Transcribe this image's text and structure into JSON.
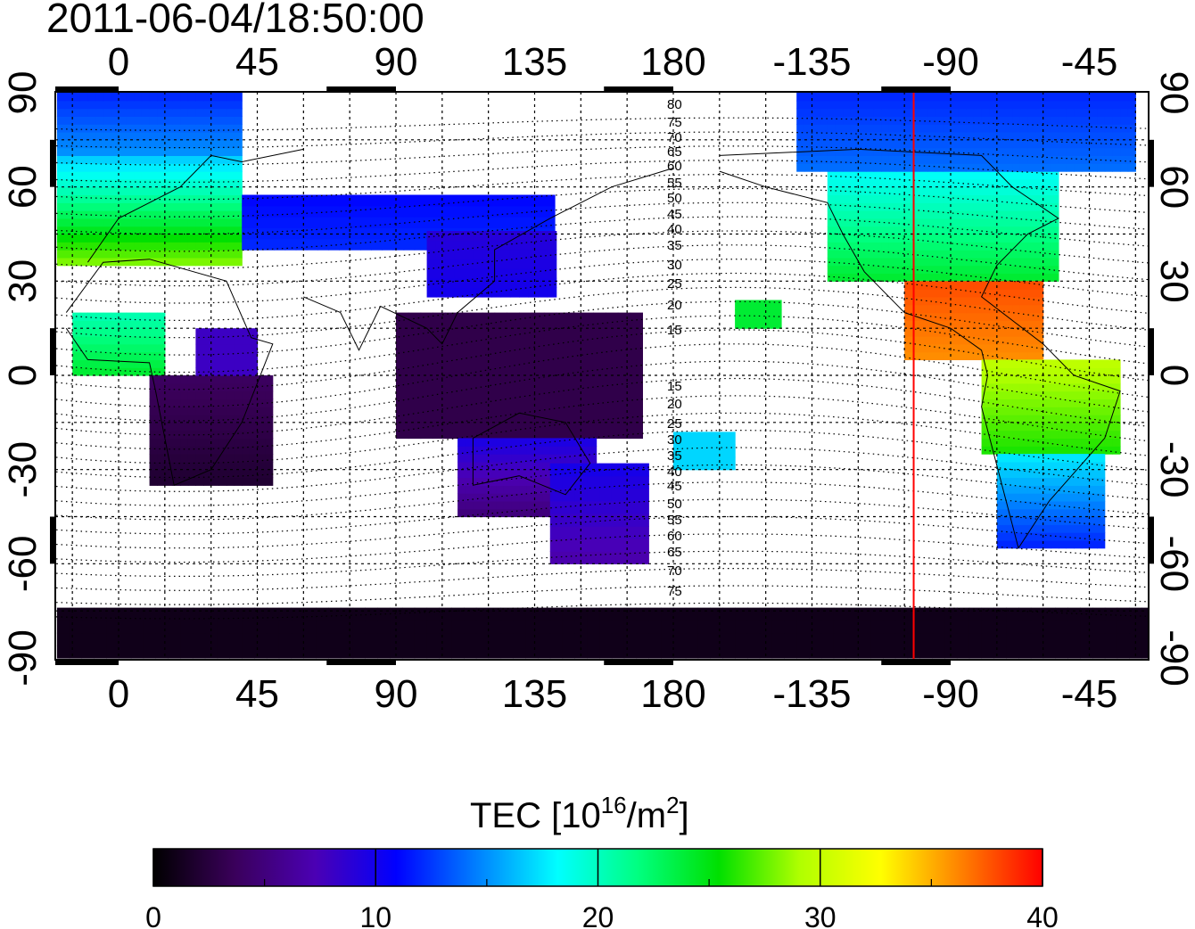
{
  "title": "2011-06-04/18:50:00",
  "map": {
    "lon_ticks": [
      "0",
      "45",
      "90",
      "135",
      "180",
      "-135",
      "-90",
      "-45"
    ],
    "lat_ticks": [
      "90",
      "60",
      "30",
      "0",
      "-30",
      "-60",
      "-90"
    ],
    "contour_labels": [
      "80",
      "75",
      "70",
      "65",
      "60",
      "55",
      "50",
      "45",
      "40",
      "35",
      "30",
      "25",
      "20",
      "15",
      "15",
      "20",
      "25",
      "30",
      "35",
      "40",
      "45",
      "50",
      "55",
      "60",
      "65",
      "70",
      "75"
    ],
    "marker_line": {
      "longitude": -102,
      "color": "#ff0000"
    }
  },
  "colorbar": {
    "label_main": "TEC  [10",
    "label_exp": "16",
    "label_unit": "/m",
    "label_exp2": "2",
    "label_close": "]",
    "min": 0,
    "max": 40,
    "ticks": [
      "0",
      "10",
      "20",
      "30",
      "40"
    ],
    "stops": [
      "#000000",
      "#3a005a",
      "#4b00b4",
      "#0000ff",
      "#0080ff",
      "#00ffff",
      "#00ff80",
      "#00e000",
      "#b0ff00",
      "#ffff00",
      "#ff8000",
      "#ff0000"
    ]
  }
}
